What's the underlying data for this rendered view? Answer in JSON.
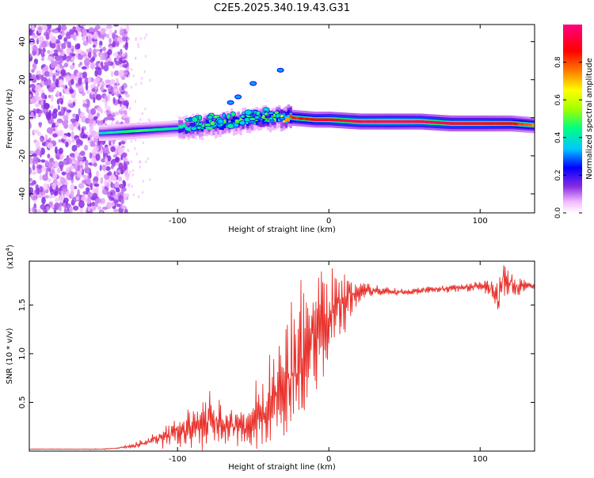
{
  "figure_title": "C2E5.2025.340.19.43.G31",
  "chart_data": [
    {
      "type": "heatmap",
      "title": "C2E5.2025.340.19.43.G31",
      "xlabel": "Height of straight line (km)",
      "ylabel": "Frequency (Hz)",
      "xlim": [
        -198,
        136
      ],
      "ylim": [
        -50,
        49
      ],
      "xticks": [
        -100,
        0,
        100
      ],
      "yticks": [
        -40,
        -20,
        0,
        20,
        40
      ],
      "colorbar": {
        "label": "Normalized spectral amplitude",
        "range": [
          0.0,
          1.0
        ],
        "ticks": [
          0.0,
          0.2,
          0.4,
          0.6,
          0.8
        ],
        "tick_labels": [
          "0.0",
          "0.2",
          "0.4",
          "0.6",
          "0.8"
        ],
        "colormap": [
          "#ffffff",
          "#f2b8ff",
          "#8a2be2",
          "#0000ff",
          "#00c8ff",
          "#00ff80",
          "#a0ff00",
          "#ffff00",
          "#ff8000",
          "#ff0000",
          "#ff0080"
        ]
      },
      "ridge": {
        "x": [
          -150,
          -130,
          -110,
          -90,
          -70,
          -50,
          -35,
          -25,
          -10,
          0,
          20,
          40,
          60,
          80,
          100,
          120,
          136
        ],
        "frequency_hz": [
          -8,
          -7,
          -6,
          -5,
          -3,
          -1,
          0,
          0,
          -1,
          -1,
          -2,
          -2,
          -2,
          -3,
          -3,
          -3,
          -4
        ],
        "amplitude": [
          0.35,
          0.45,
          0.4,
          0.4,
          0.45,
          0.5,
          0.5,
          0.8,
          0.85,
          0.9,
          0.95,
          0.98,
          0.95,
          0.9,
          0.9,
          0.85,
          0.7
        ]
      },
      "off_ridge_streaks": [
        {
          "x": -65,
          "frequency_hz": 8
        },
        {
          "x": -60,
          "frequency_hz": 11
        },
        {
          "x": -50,
          "frequency_hz": 18
        },
        {
          "x": -32,
          "frequency_hz": 25
        }
      ],
      "noise_region": {
        "x_range": [
          -198,
          -133
        ],
        "frequency_range": [
          -50,
          49
        ]
      }
    },
    {
      "type": "line",
      "xlabel": "Height of straight line (km)",
      "ylabel": "SNR (10 * v/v)",
      "y_multiplier_label": "(x10",
      "y_multiplier_exponent": "4",
      "xlim": [
        -198,
        136
      ],
      "ylim": [
        0,
        1.95
      ],
      "xticks": [
        -100,
        0,
        100
      ],
      "yticks": [
        0.5,
        1.0,
        1.5
      ],
      "ytick_labels": [
        "0.5",
        "1.0",
        "1.5"
      ],
      "line_color": "#e8302a",
      "series": [
        {
          "name": "SNR",
          "x": [
            -198,
            -170,
            -150,
            -140,
            -130,
            -125,
            -120,
            -115,
            -110,
            -100,
            -90,
            -80,
            -70,
            -60,
            -50,
            -40,
            -35,
            -30,
            -25,
            -20,
            -15,
            -10,
            -5,
            0,
            5,
            10,
            15,
            20,
            25,
            30,
            40,
            50,
            60,
            70,
            80,
            90,
            100,
            105,
            110,
            112,
            115,
            120,
            130,
            136
          ],
          "y": [
            0.02,
            0.02,
            0.02,
            0.03,
            0.05,
            0.07,
            0.1,
            0.12,
            0.15,
            0.2,
            0.25,
            0.28,
            0.25,
            0.25,
            0.3,
            0.45,
            0.55,
            0.65,
            0.8,
            0.95,
            1.05,
            1.15,
            1.25,
            1.35,
            1.45,
            1.52,
            1.58,
            1.62,
            1.65,
            1.65,
            1.64,
            1.63,
            1.65,
            1.66,
            1.67,
            1.68,
            1.69,
            1.68,
            1.6,
            1.55,
            1.75,
            1.7,
            1.68,
            1.69
          ]
        }
      ],
      "noise_envelope": {
        "x": [
          -198,
          -140,
          -130,
          -120,
          -110,
          -100,
          -90,
          -80,
          -70,
          -60,
          -50,
          -40,
          -30,
          -20,
          -10,
          0,
          10,
          20,
          30,
          50,
          70,
          90,
          100,
          110,
          115,
          136
        ],
        "amplitude": [
          0.003,
          0.005,
          0.02,
          0.05,
          0.1,
          0.15,
          0.22,
          0.28,
          0.2,
          0.18,
          0.3,
          0.45,
          0.7,
          0.75,
          0.6,
          0.45,
          0.3,
          0.12,
          0.05,
          0.03,
          0.03,
          0.04,
          0.05,
          0.12,
          0.2,
          0.03
        ]
      }
    }
  ]
}
